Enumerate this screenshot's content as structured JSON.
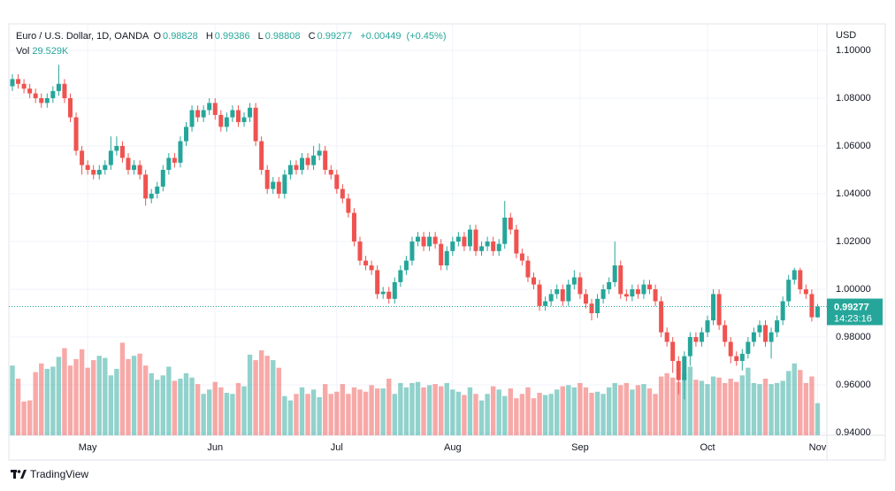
{
  "chart_data": {
    "type": "candlestick",
    "title": "Euro / U.S. Dollar, 1D, OANDA",
    "header_labels": {
      "open": "O",
      "high": "H",
      "low": "L",
      "close": "C"
    },
    "change": "+0.00449",
    "change_pct": "(+0.45%)",
    "volume_title": "Vol",
    "volume_last_label": "29.529K",
    "currency": "USD",
    "countdown": "14:23:16",
    "brand": "TradingView",
    "up_color": "#26a69a",
    "down_color": "#ef5350",
    "ylim": [
      0.9389,
      1.1111
    ],
    "yticks": [
      {
        "value": 1.1,
        "label": "1.10000"
      },
      {
        "value": 1.08,
        "label": "1.08000"
      },
      {
        "value": 1.06,
        "label": "1.06000"
      },
      {
        "value": 1.04,
        "label": "1.04000"
      },
      {
        "value": 1.02,
        "label": "1.02000"
      },
      {
        "value": 1.0,
        "label": "1.00000"
      },
      {
        "value": 0.98,
        "label": "0.98000"
      },
      {
        "value": 0.96,
        "label": "0.96000"
      },
      {
        "value": 0.94,
        "label": "0.94000"
      }
    ],
    "volume_lim": [
      0,
      130000
    ],
    "x_labels": [
      {
        "index": 13,
        "label": "May"
      },
      {
        "index": 35,
        "label": "Jun"
      },
      {
        "index": 56,
        "label": "Jul"
      },
      {
        "index": 76,
        "label": "Aug"
      },
      {
        "index": 98,
        "label": "Sep"
      },
      {
        "index": 120,
        "label": "Oct"
      },
      {
        "index": 139,
        "label": "Nov"
      }
    ],
    "open": [
      1.085,
      1.088,
      1.086,
      1.084,
      1.082,
      1.08,
      1.078,
      1.08,
      1.083,
      1.086,
      1.08,
      1.072,
      1.058,
      1.052,
      1.05,
      1.048,
      1.05,
      1.052,
      1.058,
      1.06,
      1.055,
      1.05,
      1.052,
      1.048,
      1.038,
      1.04,
      1.043,
      1.05,
      1.055,
      1.053,
      1.062,
      1.068,
      1.075,
      1.072,
      1.075,
      1.078,
      1.073,
      1.068,
      1.072,
      1.075,
      1.07,
      1.072,
      1.076,
      1.062,
      1.05,
      1.042,
      1.045,
      1.04,
      1.048,
      1.052,
      1.05,
      1.055,
      1.052,
      1.056,
      1.058,
      1.05,
      1.048,
      1.042,
      1.038,
      1.032,
      1.02,
      1.012,
      1.01,
      1.008,
      0.998,
      0.999,
      0.996,
      1.003,
      1.008,
      1.012,
      1.02,
      1.022,
      1.018,
      1.022,
      1.019,
      1.01,
      1.016,
      1.02,
      1.022,
      1.018,
      1.025,
      1.016,
      1.018,
      1.02,
      1.016,
      1.019,
      1.03,
      1.025,
      1.015,
      1.012,
      1.005,
      1.002,
      0.993,
      0.995,
      0.998,
      1.0,
      0.995,
      1.002,
      1.005,
      0.998,
      0.994,
      0.99,
      0.996,
      1.0,
      1.003,
      1.01,
      0.998,
      0.997,
      1.0,
      0.998,
      1.002,
      1.0,
      0.995,
      0.982,
      0.978,
      0.97,
      0.962,
      0.972,
      0.98,
      0.978,
      0.982,
      0.987,
      0.998,
      0.985,
      0.978,
      0.972,
      0.97,
      0.973,
      0.978,
      0.982,
      0.985,
      0.978,
      0.982,
      0.987,
      0.995,
      1.004,
      1.008,
      1.0,
      0.998,
      0.98828
    ],
    "high": [
      1.09,
      1.09,
      1.088,
      1.086,
      1.084,
      1.082,
      1.082,
      1.085,
      1.094,
      1.088,
      1.082,
      1.074,
      1.06,
      1.054,
      1.052,
      1.052,
      1.054,
      1.064,
      1.064,
      1.062,
      1.057,
      1.054,
      1.054,
      1.05,
      1.042,
      1.045,
      1.052,
      1.057,
      1.057,
      1.064,
      1.07,
      1.077,
      1.077,
      1.077,
      1.08,
      1.08,
      1.075,
      1.074,
      1.077,
      1.077,
      1.074,
      1.078,
      1.078,
      1.064,
      1.052,
      1.047,
      1.047,
      1.05,
      1.054,
      1.054,
      1.057,
      1.057,
      1.06,
      1.061,
      1.06,
      1.052,
      1.05,
      1.044,
      1.04,
      1.034,
      1.022,
      1.014,
      1.012,
      1.01,
      1.001,
      1.001,
      1.005,
      1.01,
      1.014,
      1.022,
      1.024,
      1.024,
      1.024,
      1.024,
      1.021,
      1.018,
      1.022,
      1.024,
      1.024,
      1.027,
      1.027,
      1.02,
      1.022,
      1.022,
      1.021,
      1.037,
      1.032,
      1.027,
      1.017,
      1.014,
      1.007,
      1.004,
      0.997,
      1.0,
      1.002,
      1.002,
      1.004,
      1.008,
      1.007,
      1.0,
      0.996,
      0.998,
      1.002,
      1.005,
      1.02,
      1.012,
      1.0,
      1.002,
      1.002,
      1.004,
      1.004,
      1.002,
      0.997,
      0.984,
      0.98,
      0.972,
      0.974,
      0.982,
      0.982,
      0.984,
      0.989,
      1.0,
      1.0,
      0.987,
      0.98,
      0.974,
      0.975,
      0.98,
      0.984,
      0.987,
      0.987,
      0.984,
      0.989,
      0.997,
      1.006,
      1.009,
      1.009,
      1.002,
      1.0,
      0.99386
    ],
    "low": [
      1.083,
      1.084,
      1.082,
      1.08,
      1.078,
      1.076,
      1.076,
      1.078,
      1.081,
      1.078,
      1.07,
      1.056,
      1.048,
      1.048,
      1.046,
      1.046,
      1.048,
      1.05,
      1.056,
      1.053,
      1.048,
      1.048,
      1.046,
      1.035,
      1.036,
      1.038,
      1.041,
      1.048,
      1.051,
      1.051,
      1.06,
      1.066,
      1.07,
      1.07,
      1.073,
      1.071,
      1.066,
      1.066,
      1.07,
      1.068,
      1.068,
      1.07,
      1.06,
      1.048,
      1.04,
      1.04,
      1.038,
      1.038,
      1.046,
      1.048,
      1.048,
      1.05,
      1.05,
      1.054,
      1.048,
      1.046,
      1.04,
      1.036,
      1.03,
      1.018,
      1.01,
      1.008,
      1.006,
      0.996,
      0.996,
      0.994,
      0.994,
      1.001,
      1.006,
      1.01,
      1.018,
      1.016,
      1.016,
      1.017,
      1.008,
      1.008,
      1.014,
      1.018,
      1.016,
      1.016,
      1.014,
      1.014,
      1.016,
      1.014,
      1.014,
      1.017,
      1.023,
      1.013,
      1.01,
      1.003,
      1.0,
      0.991,
      0.991,
      0.993,
      0.996,
      0.993,
      0.993,
      1.0,
      0.996,
      0.992,
      0.987,
      0.988,
      0.994,
      0.998,
      1.001,
      0.996,
      0.995,
      0.995,
      0.996,
      0.996,
      0.998,
      0.993,
      0.98,
      0.976,
      0.965,
      0.956,
      0.954,
      0.968,
      0.976,
      0.976,
      0.98,
      0.985,
      0.983,
      0.976,
      0.969,
      0.968,
      0.966,
      0.971,
      0.976,
      0.98,
      0.976,
      0.971,
      0.98,
      0.985,
      0.993,
      1.002,
      0.998,
      0.996,
      0.9865,
      0.98808
    ],
    "close": [
      1.088,
      1.086,
      1.084,
      1.082,
      1.08,
      1.078,
      1.08,
      1.083,
      1.086,
      1.08,
      1.072,
      1.058,
      1.052,
      1.05,
      1.048,
      1.05,
      1.052,
      1.058,
      1.06,
      1.055,
      1.05,
      1.052,
      1.048,
      1.038,
      1.04,
      1.043,
      1.05,
      1.055,
      1.053,
      1.062,
      1.068,
      1.075,
      1.072,
      1.075,
      1.078,
      1.073,
      1.068,
      1.072,
      1.075,
      1.07,
      1.072,
      1.076,
      1.062,
      1.05,
      1.042,
      1.045,
      1.04,
      1.048,
      1.052,
      1.05,
      1.055,
      1.052,
      1.056,
      1.058,
      1.05,
      1.048,
      1.042,
      1.038,
      1.032,
      1.02,
      1.012,
      1.01,
      1.008,
      0.998,
      0.999,
      0.996,
      1.003,
      1.008,
      1.012,
      1.02,
      1.022,
      1.018,
      1.022,
      1.019,
      1.01,
      1.016,
      1.02,
      1.022,
      1.018,
      1.025,
      1.016,
      1.018,
      1.02,
      1.016,
      1.019,
      1.03,
      1.025,
      1.015,
      1.012,
      1.005,
      1.002,
      0.993,
      0.995,
      0.998,
      1.0,
      0.995,
      1.002,
      1.005,
      0.998,
      0.994,
      0.99,
      0.996,
      1.0,
      1.003,
      1.01,
      0.998,
      0.997,
      1.0,
      0.998,
      1.002,
      1.0,
      0.995,
      0.982,
      0.978,
      0.97,
      0.962,
      0.972,
      0.98,
      0.978,
      0.982,
      0.987,
      0.998,
      0.985,
      0.978,
      0.972,
      0.97,
      0.973,
      0.978,
      0.982,
      0.985,
      0.978,
      0.982,
      0.987,
      0.995,
      1.004,
      1.008,
      1.0,
      0.998,
      0.9883,
      0.99277
    ],
    "volume": [
      64000,
      52000,
      31000,
      32000,
      58000,
      66000,
      61000,
      63000,
      72000,
      80000,
      64000,
      70000,
      79000,
      62000,
      69000,
      73000,
      71000,
      55000,
      61000,
      85000,
      70000,
      73000,
      75000,
      64000,
      57000,
      51000,
      55000,
      63000,
      50000,
      52000,
      57000,
      53000,
      47000,
      38000,
      42000,
      49000,
      44000,
      39000,
      38000,
      48000,
      45000,
      74000,
      69000,
      78000,
      73000,
      69000,
      62000,
      36000,
      32000,
      38000,
      44000,
      38000,
      42000,
      35000,
      47000,
      38000,
      40000,
      47000,
      38000,
      44000,
      42000,
      40000,
      46000,
      43000,
      43000,
      52000,
      38000,
      48000,
      44000,
      48000,
      49000,
      44000,
      46000,
      47000,
      45000,
      48000,
      42000,
      40000,
      37000,
      44000,
      38000,
      32000,
      38000,
      45000,
      42000,
      36000,
      43000,
      34000,
      38000,
      44000,
      34000,
      39000,
      37000,
      38000,
      42000,
      45000,
      46000,
      44000,
      48000,
      44000,
      39000,
      40000,
      38000,
      44000,
      48000,
      46000,
      48000,
      42000,
      46000,
      47000,
      43000,
      38000,
      54000,
      57000,
      53000,
      49000,
      57000,
      63000,
      51000,
      50000,
      47000,
      54000,
      53000,
      48000,
      52000,
      49000,
      55000,
      62000,
      48000,
      47000,
      52000,
      47000,
      48000,
      50000,
      59000,
      66000,
      60000,
      48000,
      54000,
      29529
    ]
  }
}
